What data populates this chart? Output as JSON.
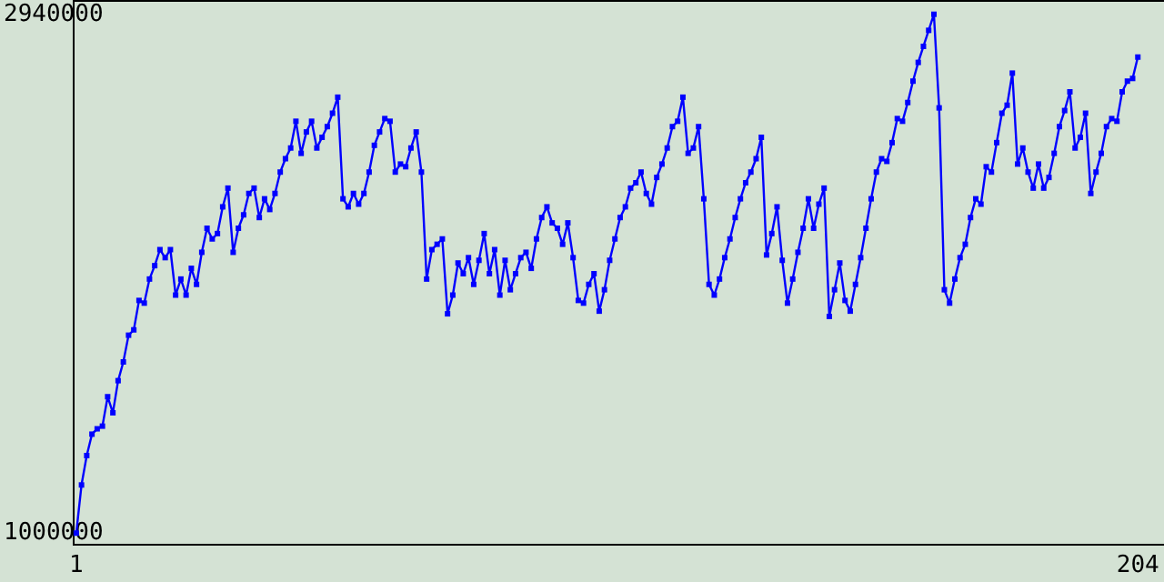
{
  "chart_data": {
    "type": "line",
    "marker": "square",
    "line_style": "solid",
    "grid": false,
    "xlim": [
      0.5,
      209
    ],
    "xticks": [
      1,
      204
    ],
    "ylim": [
      960000,
      2990000
    ],
    "yticks": [
      1000000,
      2940000
    ],
    "series": [
      {
        "color": "#0000ff",
        "x": [
          1,
          2,
          3,
          4,
          5,
          6,
          7,
          8,
          9,
          10,
          11,
          12,
          13,
          14,
          15,
          16,
          17,
          18,
          19,
          20,
          21,
          22,
          23,
          24,
          25,
          26,
          27,
          28,
          29,
          30,
          31,
          32,
          33,
          34,
          35,
          36,
          37,
          38,
          39,
          40,
          41,
          42,
          43,
          44,
          45,
          46,
          47,
          48,
          49,
          50,
          51,
          52,
          53,
          54,
          55,
          56,
          57,
          58,
          59,
          60,
          61,
          62,
          63,
          64,
          65,
          66,
          67,
          68,
          69,
          70,
          71,
          72,
          73,
          74,
          75,
          76,
          77,
          78,
          79,
          80,
          81,
          82,
          83,
          84,
          85,
          86,
          87,
          88,
          89,
          90,
          91,
          92,
          93,
          94,
          95,
          96,
          97,
          98,
          99,
          100,
          101,
          102,
          103,
          104,
          105,
          106,
          107,
          108,
          109,
          110,
          111,
          112,
          113,
          114,
          115,
          116,
          117,
          118,
          119,
          120,
          121,
          122,
          123,
          124,
          125,
          126,
          127,
          128,
          129,
          130,
          131,
          132,
          133,
          134,
          135,
          136,
          137,
          138,
          139,
          140,
          141,
          142,
          143,
          144,
          145,
          146,
          147,
          148,
          149,
          150,
          151,
          152,
          153,
          154,
          155,
          156,
          157,
          158,
          159,
          160,
          161,
          162,
          163,
          164,
          165,
          166,
          167,
          168,
          169,
          170,
          171,
          172,
          173,
          174,
          175,
          176,
          177,
          178,
          179,
          180,
          181,
          182,
          183,
          184,
          185,
          186,
          187,
          188,
          189,
          190,
          191,
          192,
          193,
          194,
          195,
          196,
          197,
          198,
          199,
          200,
          201,
          202,
          203,
          204
        ],
        "values": [
          1000000,
          1180000,
          1290000,
          1370000,
          1390000,
          1400000,
          1510000,
          1450000,
          1570000,
          1640000,
          1740000,
          1760000,
          1870000,
          1860000,
          1950000,
          2000000,
          2060000,
          2030000,
          2060000,
          1890000,
          1950000,
          1890000,
          1990000,
          1930000,
          2050000,
          2140000,
          2100000,
          2120000,
          2220000,
          2290000,
          2050000,
          2140000,
          2190000,
          2270000,
          2290000,
          2180000,
          2250000,
          2210000,
          2270000,
          2350000,
          2400000,
          2440000,
          2540000,
          2420000,
          2500000,
          2540000,
          2440000,
          2480000,
          2520000,
          2570000,
          2630000,
          2250000,
          2220000,
          2270000,
          2230000,
          2270000,
          2350000,
          2450000,
          2500000,
          2550000,
          2540000,
          2350000,
          2380000,
          2370000,
          2440000,
          2500000,
          2350000,
          1950000,
          2060000,
          2080000,
          2100000,
          1820000,
          1890000,
          2010000,
          1970000,
          2030000,
          1930000,
          2020000,
          2120000,
          1970000,
          2060000,
          1890000,
          2020000,
          1910000,
          1970000,
          2030000,
          2050000,
          1990000,
          2100000,
          2180000,
          2220000,
          2160000,
          2140000,
          2080000,
          2160000,
          2030000,
          1870000,
          1860000,
          1930000,
          1970000,
          1830000,
          1910000,
          2020000,
          2100000,
          2180000,
          2220000,
          2290000,
          2310000,
          2350000,
          2270000,
          2230000,
          2330000,
          2380000,
          2440000,
          2520000,
          2540000,
          2630000,
          2420000,
          2440000,
          2520000,
          2250000,
          1930000,
          1890000,
          1950000,
          2030000,
          2100000,
          2180000,
          2250000,
          2310000,
          2350000,
          2400000,
          2480000,
          2040000,
          2120000,
          2220000,
          2020000,
          1860000,
          1950000,
          2050000,
          2140000,
          2250000,
          2140000,
          2230000,
          2290000,
          1810000,
          1910000,
          2010000,
          1870000,
          1830000,
          1930000,
          2030000,
          2140000,
          2250000,
          2350000,
          2400000,
          2390000,
          2460000,
          2550000,
          2540000,
          2610000,
          2690000,
          2760000,
          2820000,
          2880000,
          2940000,
          2590000,
          1910000,
          1860000,
          1950000,
          2030000,
          2080000,
          2180000,
          2250000,
          2230000,
          2370000,
          2350000,
          2460000,
          2570000,
          2600000,
          2720000,
          2380000,
          2440000,
          2350000,
          2290000,
          2380000,
          2290000,
          2330000,
          2420000,
          2520000,
          2580000,
          2650000,
          2440000,
          2480000,
          2570000,
          2270000,
          2350000,
          2420000,
          2520000,
          2550000,
          2540000,
          2650000,
          2690000,
          2700000,
          2780000
        ]
      }
    ]
  }
}
